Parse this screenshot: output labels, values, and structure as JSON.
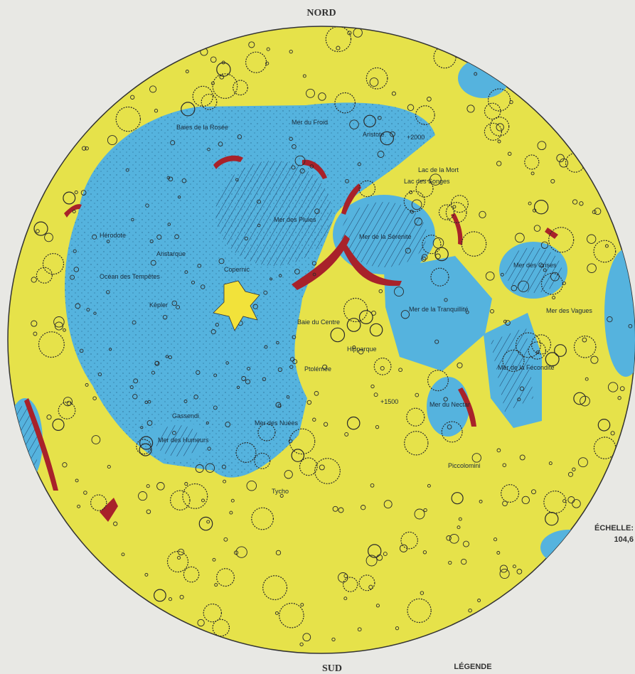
{
  "header": {
    "north": "NORD"
  },
  "footer": {
    "south": "SUD",
    "legend": "LÉGENDE"
  },
  "scale": {
    "label": "ÉCHELLE:",
    "value": "104,6"
  },
  "map_labels": [
    "Baies de la Rosée",
    "Mer du Froid",
    "Mer des Pluies",
    "Mer de la Sérénité",
    "Mer des Crises",
    "Hérodote",
    "Aristarque",
    "Océan des Tempêtes",
    "Copernic",
    "Képler",
    "Baie du Centre",
    "Hipparque",
    "Ptolémée",
    "Gassendi",
    "Mer des Nuées",
    "Mer des Humeurs",
    "Tycho",
    "Piccolomini",
    "Mer de la Tranquillité",
    "Mer de la Fécondité",
    "Mer du Nectar",
    "Lac des Songes",
    "Lac de la Mort",
    "Aristote",
    "Mer des Vagues",
    "+2000",
    "+1500"
  ]
}
